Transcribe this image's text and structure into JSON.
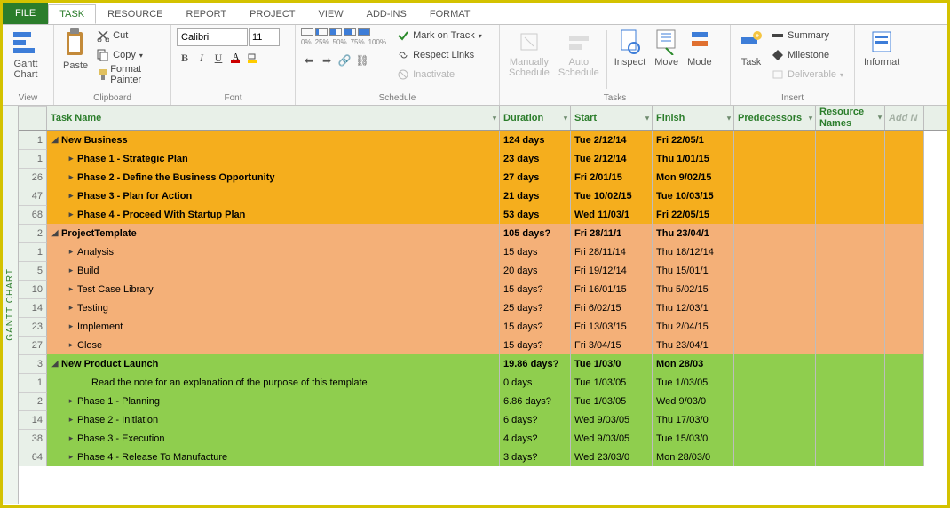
{
  "tabs": {
    "file": "FILE",
    "task": "TASK",
    "resource": "RESOURCE",
    "report": "REPORT",
    "project": "PROJECT",
    "view": "VIEW",
    "addins": "ADD-INS",
    "format": "FORMAT"
  },
  "ribbon": {
    "view": {
      "gantt": "Gantt\nChart",
      "label": "View"
    },
    "clipboard": {
      "paste": "Paste",
      "cut": "Cut",
      "copy": "Copy",
      "fmt": "Format Painter",
      "label": "Clipboard"
    },
    "font": {
      "name": "Calibri",
      "size": "11",
      "label": "Font"
    },
    "schedule": {
      "pct": [
        "0%",
        "25%",
        "50%",
        "75%",
        "100%"
      ],
      "mark": "Mark on Track",
      "respect": "Respect Links",
      "inactivate": "Inactivate",
      "label": "Schedule"
    },
    "tasks": {
      "manual": "Manually\nSchedule",
      "auto": "Auto\nSchedule",
      "inspect": "Inspect",
      "move": "Move",
      "mode": "Mode",
      "label": "Tasks"
    },
    "insert": {
      "task": "Task",
      "summary": "Summary",
      "milestone": "Milestone",
      "deliverable": "Deliverable",
      "label": "Insert"
    },
    "info": {
      "label": "Informat"
    }
  },
  "columns": {
    "task": "Task Name",
    "dur": "Duration",
    "start": "Start",
    "finish": "Finish",
    "pred": "Predecessors",
    "res": "Resource\nNames",
    "add": "Add N"
  },
  "sidebar": "GANTT CHART",
  "colors": {
    "orange": "#f5ae1d",
    "peach": "#f4b078",
    "green": "#8fce4e"
  },
  "rows": [
    {
      "n": "1",
      "name": "New Business",
      "dur": "124 days",
      "start": "Tue 2/12/14",
      "fin": "Fri 22/05/1",
      "indent": 0,
      "caret": "down",
      "bold": true,
      "color": "orange"
    },
    {
      "n": "1",
      "name": "Phase 1 - Strategic Plan",
      "dur": "23 days",
      "start": "Tue 2/12/14",
      "fin": "Thu 1/01/15",
      "indent": 1,
      "caret": "right",
      "bold": true,
      "color": "orange"
    },
    {
      "n": "26",
      "name": "Phase 2 - Define the Business Opportunity",
      "dur": "27 days",
      "start": "Fri 2/01/15",
      "fin": "Mon 9/02/15",
      "indent": 1,
      "caret": "right",
      "bold": true,
      "color": "orange"
    },
    {
      "n": "47",
      "name": "Phase 3 - Plan for Action",
      "dur": "21 days",
      "start": "Tue 10/02/15",
      "fin": "Tue 10/03/15",
      "indent": 1,
      "caret": "right",
      "bold": true,
      "color": "orange"
    },
    {
      "n": "68",
      "name": "Phase 4 - Proceed With Startup Plan",
      "dur": "53 days",
      "start": "Wed 11/03/1",
      "fin": "Fri 22/05/15",
      "indent": 1,
      "caret": "right",
      "bold": true,
      "color": "orange"
    },
    {
      "n": "2",
      "name": "ProjectTemplate",
      "dur": "105 days?",
      "start": "Fri 28/11/1",
      "fin": "Thu 23/04/1",
      "indent": 0,
      "caret": "down",
      "bold": true,
      "color": "peach"
    },
    {
      "n": "1",
      "name": "Analysis",
      "dur": "15 days",
      "start": "Fri 28/11/14",
      "fin": "Thu 18/12/14",
      "indent": 1,
      "caret": "right",
      "bold": false,
      "color": "peach"
    },
    {
      "n": "5",
      "name": "Build",
      "dur": "20 days",
      "start": "Fri 19/12/14",
      "fin": "Thu 15/01/1",
      "indent": 1,
      "caret": "right",
      "bold": false,
      "color": "peach"
    },
    {
      "n": "10",
      "name": "Test Case Library",
      "dur": "15 days?",
      "start": "Fri 16/01/15",
      "fin": "Thu 5/02/15",
      "indent": 1,
      "caret": "right",
      "bold": false,
      "color": "peach"
    },
    {
      "n": "14",
      "name": "Testing",
      "dur": "25 days?",
      "start": "Fri 6/02/15",
      "fin": "Thu 12/03/1",
      "indent": 1,
      "caret": "right",
      "bold": false,
      "color": "peach"
    },
    {
      "n": "23",
      "name": "Implement",
      "dur": "15 days?",
      "start": "Fri 13/03/15",
      "fin": "Thu 2/04/15",
      "indent": 1,
      "caret": "right",
      "bold": false,
      "color": "peach"
    },
    {
      "n": "27",
      "name": "Close",
      "dur": "15 days?",
      "start": "Fri 3/04/15",
      "fin": "Thu 23/04/1",
      "indent": 1,
      "caret": "right",
      "bold": false,
      "color": "peach"
    },
    {
      "n": "3",
      "name": "New Product Launch",
      "dur": "19.86 days?",
      "start": "Tue 1/03/0",
      "fin": "Mon 28/03",
      "indent": 0,
      "caret": "down",
      "bold": true,
      "color": "green"
    },
    {
      "n": "1",
      "name": "Read the note for an explanation of the purpose of this template",
      "dur": "0 days",
      "start": "Tue 1/03/05",
      "fin": "Tue 1/03/05",
      "indent": 2,
      "caret": "none",
      "bold": false,
      "color": "green"
    },
    {
      "n": "2",
      "name": "Phase 1 - Planning",
      "dur": "6.86 days?",
      "start": "Tue 1/03/05",
      "fin": "Wed 9/03/0",
      "indent": 1,
      "caret": "right",
      "bold": false,
      "color": "green"
    },
    {
      "n": "14",
      "name": "Phase 2 - Initiation",
      "dur": "6 days?",
      "start": "Wed 9/03/05",
      "fin": "Thu 17/03/0",
      "indent": 1,
      "caret": "right",
      "bold": false,
      "color": "green"
    },
    {
      "n": "38",
      "name": "Phase 3 - Execution",
      "dur": "4 days?",
      "start": "Wed 9/03/05",
      "fin": "Tue 15/03/0",
      "indent": 1,
      "caret": "right",
      "bold": false,
      "color": "green"
    },
    {
      "n": "64",
      "name": "Phase 4 - Release To Manufacture",
      "dur": "3 days?",
      "start": "Wed 23/03/0",
      "fin": "Mon 28/03/0",
      "indent": 1,
      "caret": "right",
      "bold": false,
      "color": "green"
    }
  ]
}
